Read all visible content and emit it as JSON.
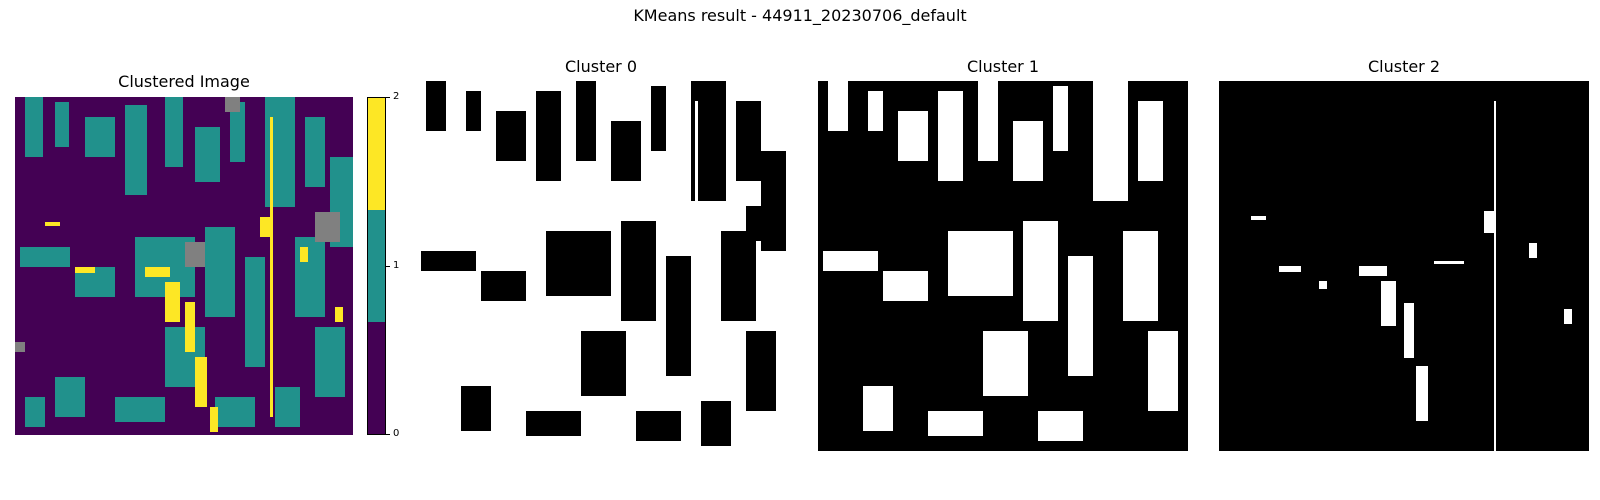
{
  "figure": {
    "title": "KMeans result - 44911_20230706_default"
  },
  "panels": [
    {
      "title": "Clustered Image"
    },
    {
      "title": "Cluster 0"
    },
    {
      "title": "Cluster 1"
    },
    {
      "title": "Cluster 2"
    }
  ],
  "colorbar": {
    "ticks": [
      "2",
      "1",
      "0"
    ],
    "colors": [
      "#fde725",
      "#21918c",
      "#440154"
    ]
  },
  "palette": {
    "cluster0": "#440154",
    "cluster1": "#21918c",
    "cluster2": "#fde725",
    "nodata": "#808080",
    "mask_on": "#ffffff",
    "mask_off": "#000000"
  }
}
